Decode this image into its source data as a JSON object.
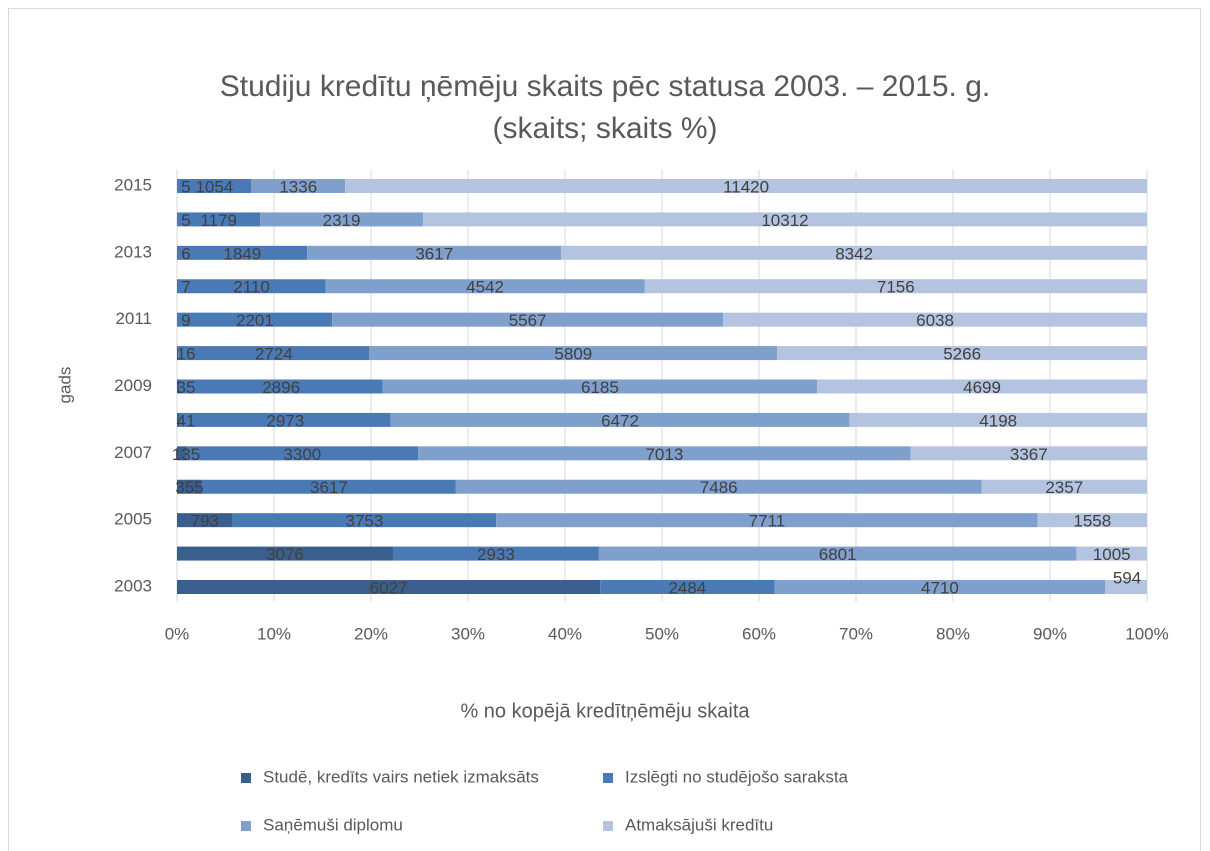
{
  "chart_data": {
    "type": "stacked_bar_100",
    "title": "Studiju kredītu ņēmēju skaits pēc statusa 2003. – 2015. g.",
    "subtitle": "(skaits; skaits %)",
    "x_label": "% no kopējā kredītņēmēju skaita",
    "y_label": "gads",
    "categories": [
      "2003",
      null,
      "2005",
      null,
      "2007",
      null,
      "2009",
      null,
      "2011",
      null,
      "2013",
      null,
      "2015"
    ],
    "series": [
      {
        "name": "Studē, kredīts vairs netiek izmaksāts",
        "color": "#3a5f8f",
        "values": [
          6027,
          3076,
          793,
          355,
          135,
          41,
          35,
          16,
          9,
          7,
          6,
          5,
          5
        ]
      },
      {
        "name": "Izslēgti no studējošo saraksta",
        "color": "#4a7ab5",
        "values": [
          2484,
          2933,
          3753,
          3617,
          3300,
          2973,
          2896,
          2724,
          2201,
          2110,
          1849,
          1179,
          1054
        ]
      },
      {
        "name": "Saņēmuši diplomu",
        "color": "#7f9fcc",
        "values": [
          4710,
          6801,
          7711,
          7486,
          7013,
          6472,
          6185,
          5809,
          5567,
          4542,
          3617,
          2319,
          1336
        ]
      },
      {
        "name": "Atmaksājuši kredītu",
        "color": "#b4c4e0",
        "values": [
          594,
          1005,
          1558,
          2357,
          3367,
          4198,
          4699,
          5266,
          6038,
          7156,
          8342,
          10312,
          11420
        ]
      }
    ],
    "xlim": [
      0,
      100
    ],
    "xticks": [
      {
        "value": 0,
        "label": "0%"
      },
      {
        "value": 10,
        "label": "10%"
      },
      {
        "value": 20,
        "label": "20%"
      },
      {
        "value": 30,
        "label": "30%"
      },
      {
        "value": 40,
        "label": "40%"
      },
      {
        "value": 50,
        "label": "50%"
      },
      {
        "value": 60,
        "label": "60%"
      },
      {
        "value": 70,
        "label": "70%"
      },
      {
        "value": 80,
        "label": "80%"
      },
      {
        "value": 90,
        "label": "90%"
      },
      {
        "value": 100,
        "label": "100%"
      }
    ],
    "grid": true,
    "legend": "bottom"
  }
}
